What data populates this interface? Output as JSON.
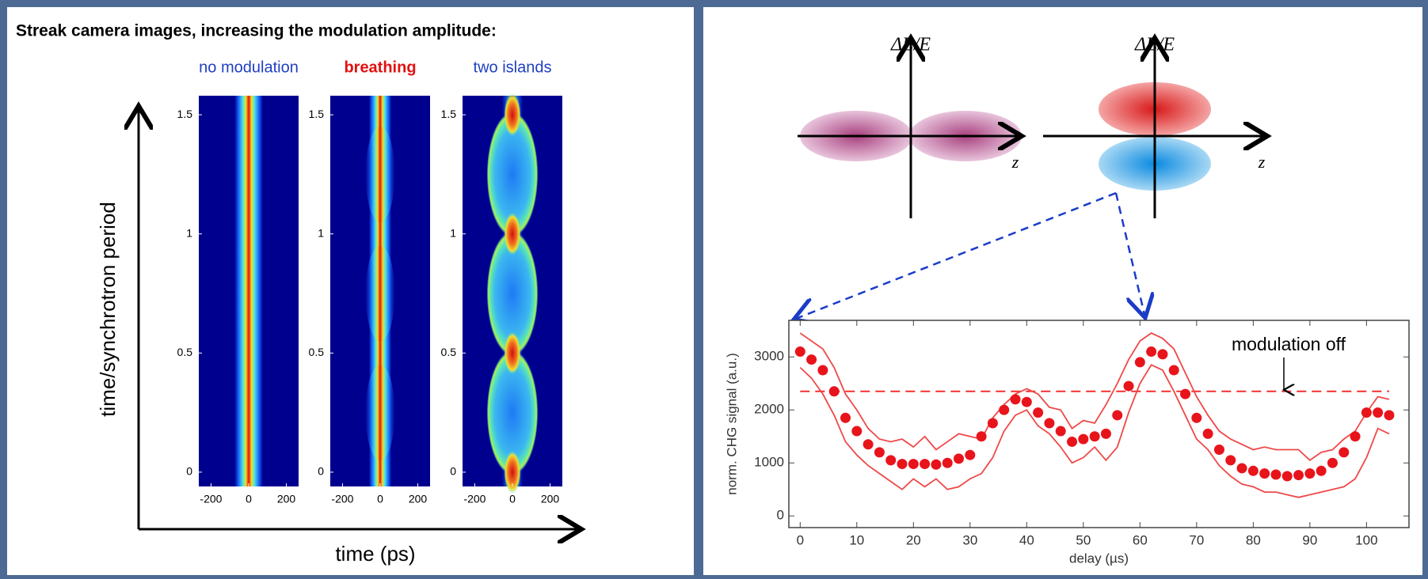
{
  "figure": {
    "title": "Streak camera images, increasing the modulation amplitude:",
    "y_label": "time/synchrotron period",
    "x_label": "time (ps)"
  },
  "diagrams": [
    {
      "y_label": "ΔE/E",
      "x_label": "z"
    },
    {
      "y_label": "ΔE/E",
      "x_label": "z"
    }
  ],
  "chart_data": [
    {
      "type": "heatmap",
      "title": "no modulation",
      "title_color": "#1f3fc0",
      "title_bold": false,
      "xlim": [
        -265,
        265
      ],
      "ylim": [
        -0.06,
        1.58
      ],
      "xticks": [
        -200,
        0,
        200
      ],
      "yticks": [
        0,
        0.5,
        1,
        1.5
      ]
    },
    {
      "type": "heatmap",
      "title": "breathing",
      "title_color": "#e01010",
      "title_bold": true,
      "xlim": [
        -265,
        265
      ],
      "ylim": [
        -0.06,
        1.58
      ],
      "xticks": [
        -200,
        0,
        200
      ],
      "yticks": [
        0,
        0.5,
        1,
        1.5
      ]
    },
    {
      "type": "heatmap",
      "title": "two islands",
      "title_color": "#1f3fc0",
      "title_bold": false,
      "xlim": [
        -265,
        265
      ],
      "ylim": [
        -0.06,
        1.58
      ],
      "xticks": [
        -200,
        0,
        200
      ],
      "yticks": [
        0,
        0.5,
        1,
        1.5
      ]
    },
    {
      "type": "line",
      "x_label": "delay (µs)",
      "y_label": "norm. CHG signal (a.u.)",
      "x": [
        0,
        2,
        4,
        6,
        8,
        10,
        12,
        14,
        16,
        18,
        20,
        22,
        24,
        26,
        28,
        30,
        32,
        34,
        36,
        38,
        40,
        42,
        44,
        46,
        48,
        50,
        52,
        54,
        56,
        58,
        60,
        62,
        64,
        66,
        68,
        70,
        72,
        74,
        76,
        78,
        80,
        82,
        84,
        86,
        88,
        90,
        92,
        94,
        96,
        98,
        100,
        102,
        104
      ],
      "series": [
        {
          "color": "#e8141b",
          "marker": "circle",
          "values": [
            3100,
            2950,
            2750,
            2350,
            1850,
            1600,
            1350,
            1200,
            1050,
            980,
            980,
            980,
            970,
            1000,
            1080,
            1150,
            1500,
            1750,
            2000,
            2200,
            2150,
            1950,
            1750,
            1600,
            1400,
            1450,
            1500,
            1550,
            1900,
            2450,
            2900,
            3100,
            3050,
            2750,
            2300,
            1850,
            1550,
            1250,
            1050,
            900,
            850,
            800,
            780,
            750,
            770,
            800,
            850,
            1000,
            1200,
            1500,
            1950,
            1950,
            1900
          ]
        },
        {
          "color": "#f04848",
          "marker": "none",
          "values": [
            3450,
            3300,
            3150,
            2800,
            2300,
            2000,
            1650,
            1450,
            1400,
            1450,
            1300,
            1500,
            1250,
            1400,
            1550,
            1500,
            1450,
            1850,
            2100,
            2300,
            2400,
            2300,
            2050,
            2000,
            1650,
            1800,
            1750,
            2100,
            2500,
            2950,
            3300,
            3450,
            3350,
            3150,
            2700,
            2250,
            1900,
            1600,
            1450,
            1350,
            1250,
            1300,
            1250,
            1250,
            1250,
            1050,
            1200,
            1250,
            1450,
            1600,
            1950,
            2250,
            2200
          ]
        },
        {
          "color": "#f04848",
          "marker": "none",
          "values": [
            2800,
            2600,
            2300,
            1900,
            1400,
            1150,
            950,
            800,
            650,
            500,
            700,
            550,
            700,
            500,
            550,
            700,
            800,
            1100,
            1600,
            1900,
            2000,
            1700,
            1550,
            1300,
            1000,
            1100,
            1300,
            1050,
            1300,
            1950,
            2500,
            2850,
            2750,
            2350,
            1900,
            1450,
            1250,
            950,
            750,
            600,
            550,
            450,
            450,
            400,
            350,
            400,
            450,
            500,
            550,
            700,
            1100,
            1650,
            1550
          ]
        }
      ],
      "hline": {
        "value": 2350,
        "label": "modulation off",
        "color": "#f03030",
        "dashed": true
      },
      "xlim": [
        -2,
        107.5
      ],
      "ylim": [
        -220,
        3690
      ],
      "xticks": [
        0,
        10,
        20,
        30,
        40,
        50,
        60,
        70,
        80,
        90,
        100
      ],
      "yticks": [
        0,
        1000,
        2000,
        3000
      ]
    }
  ]
}
